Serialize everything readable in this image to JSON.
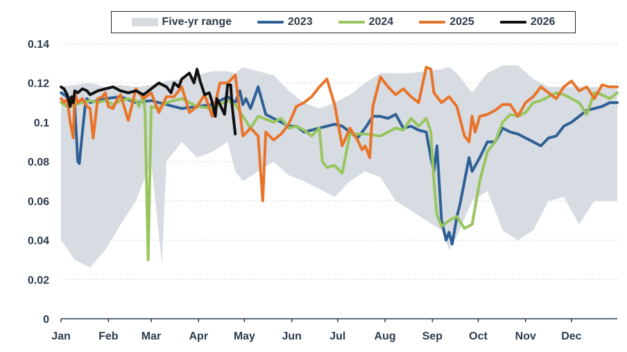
{
  "chart_data": {
    "type": "line",
    "title": "",
    "xlabel": "",
    "ylabel": "",
    "ylim": [
      0,
      0.14
    ],
    "y_ticks": [
      "0",
      "0.02",
      "0.04",
      "0.06",
      "0.08",
      "0.1",
      "0.12",
      "0.14"
    ],
    "y_tick_values": [
      0,
      0.02,
      0.04,
      0.06,
      0.08,
      0.1,
      0.12,
      0.14
    ],
    "x_tick_labels": [
      "Jan",
      "Feb",
      "Mar",
      "Apr",
      "May",
      "Jun",
      "Jul",
      "Aug",
      "Sep",
      "Oct",
      "Nov",
      "Dec"
    ],
    "x_unit": "day of year",
    "xlim": [
      1,
      365
    ],
    "legend": [
      "Five-yr range",
      "2023",
      "2024",
      "2025",
      "2026"
    ],
    "band": {
      "name": "Five-yr range",
      "color": "#d7dbe2",
      "x": [
        1,
        10,
        20,
        30,
        40,
        50,
        60,
        67,
        70,
        80,
        90,
        100,
        110,
        115,
        120,
        130,
        140,
        150,
        160,
        170,
        180,
        190,
        200,
        210,
        220,
        230,
        240,
        250,
        255,
        260,
        270,
        280,
        290,
        300,
        310,
        320,
        330,
        340,
        350,
        365
      ],
      "low": [
        0.04,
        0.03,
        0.026,
        0.035,
        0.048,
        0.06,
        0.08,
        0.028,
        0.08,
        0.09,
        0.082,
        0.085,
        0.09,
        0.075,
        0.07,
        0.075,
        0.08,
        0.073,
        0.07,
        0.066,
        0.062,
        0.07,
        0.075,
        0.072,
        0.06,
        0.055,
        0.05,
        0.045,
        0.035,
        0.042,
        0.06,
        0.065,
        0.045,
        0.04,
        0.045,
        0.06,
        0.062,
        0.048,
        0.06,
        0.06
      ],
      "high": [
        0.118,
        0.119,
        0.12,
        0.118,
        0.119,
        0.118,
        0.119,
        0.12,
        0.121,
        0.122,
        0.124,
        0.126,
        0.126,
        0.125,
        0.128,
        0.126,
        0.124,
        0.116,
        0.11,
        0.107,
        0.11,
        0.114,
        0.12,
        0.125,
        0.125,
        0.125,
        0.126,
        0.127,
        0.128,
        0.125,
        0.115,
        0.125,
        0.129,
        0.129,
        0.122,
        0.118,
        0.118,
        0.118,
        0.118,
        0.117
      ]
    },
    "series": [
      {
        "name": "2023",
        "color": "#2e6096",
        "x": [
          1,
          5,
          8,
          10,
          12,
          13,
          15,
          17,
          18,
          20,
          25,
          30,
          40,
          50,
          60,
          65,
          70,
          80,
          90,
          100,
          110,
          115,
          118,
          120,
          122,
          125,
          130,
          135,
          140,
          145,
          150,
          155,
          160,
          165,
          170,
          175,
          180,
          185,
          190,
          195,
          200,
          205,
          210,
          215,
          220,
          225,
          230,
          235,
          240,
          243,
          245,
          247,
          250,
          253,
          255,
          257,
          260,
          262,
          265,
          268,
          270,
          275,
          280,
          285,
          290,
          295,
          300,
          305,
          310,
          315,
          320,
          325,
          330,
          335,
          340,
          345,
          350,
          355,
          360,
          365
        ],
        "y": [
          0.115,
          0.113,
          0.112,
          0.108,
          0.08,
          0.079,
          0.095,
          0.11,
          0.112,
          0.11,
          0.111,
          0.112,
          0.113,
          0.11,
          0.111,
          0.11,
          0.109,
          0.107,
          0.108,
          0.109,
          0.113,
          0.11,
          0.116,
          0.109,
          0.112,
          0.107,
          0.118,
          0.104,
          0.102,
          0.1,
          0.098,
          0.098,
          0.095,
          0.096,
          0.097,
          0.098,
          0.099,
          0.098,
          0.095,
          0.092,
          0.097,
          0.103,
          0.103,
          0.102,
          0.104,
          0.097,
          0.098,
          0.096,
          0.095,
          0.082,
          0.075,
          0.088,
          0.05,
          0.04,
          0.044,
          0.038,
          0.052,
          0.058,
          0.07,
          0.082,
          0.075,
          0.082,
          0.09,
          0.09,
          0.097,
          0.095,
          0.094,
          0.092,
          0.09,
          0.088,
          0.092,
          0.093,
          0.098,
          0.1,
          0.103,
          0.106,
          0.107,
          0.108,
          0.11,
          0.11
        ]
      },
      {
        "name": "2024",
        "color": "#98c55e",
        "x": [
          1,
          5,
          10,
          15,
          20,
          25,
          30,
          35,
          40,
          45,
          50,
          52,
          54,
          55,
          56,
          58,
          60,
          65,
          70,
          75,
          80,
          90,
          100,
          110,
          115,
          120,
          125,
          130,
          140,
          145,
          150,
          155,
          160,
          165,
          170,
          172,
          175,
          180,
          185,
          190,
          200,
          210,
          215,
          220,
          225,
          230,
          235,
          240,
          243,
          245,
          247,
          250,
          255,
          260,
          265,
          270,
          275,
          280,
          285,
          290,
          295,
          300,
          305,
          310,
          315,
          320,
          325,
          330,
          335,
          340,
          345,
          350,
          355,
          360,
          365
        ],
        "y": [
          0.11,
          0.108,
          0.109,
          0.11,
          0.111,
          0.11,
          0.111,
          0.109,
          0.111,
          0.112,
          0.111,
          0.108,
          0.112,
          0.113,
          0.105,
          0.03,
          0.108,
          0.107,
          0.11,
          0.111,
          0.112,
          0.108,
          0.107,
          0.111,
          0.109,
          0.103,
          0.097,
          0.103,
          0.1,
          0.102,
          0.097,
          0.098,
          0.096,
          0.093,
          0.097,
          0.08,
          0.077,
          0.078,
          0.074,
          0.094,
          0.094,
          0.093,
          0.095,
          0.097,
          0.096,
          0.102,
          0.098,
          0.102,
          0.095,
          0.07,
          0.053,
          0.047,
          0.05,
          0.052,
          0.046,
          0.048,
          0.07,
          0.085,
          0.09,
          0.1,
          0.104,
          0.103,
          0.105,
          0.11,
          0.111,
          0.113,
          0.115,
          0.114,
          0.112,
          0.11,
          0.104,
          0.115,
          0.114,
          0.112,
          0.115
        ]
      },
      {
        "name": "2025",
        "color": "#e8742a",
        "x": [
          1,
          3,
          5,
          7,
          9,
          10,
          12,
          15,
          18,
          20,
          22,
          25,
          28,
          30,
          32,
          35,
          38,
          40,
          45,
          50,
          55,
          60,
          65,
          70,
          75,
          80,
          85,
          90,
          95,
          100,
          105,
          110,
          115,
          120,
          125,
          130,
          133,
          135,
          140,
          145,
          150,
          155,
          160,
          165,
          170,
          175,
          180,
          185,
          190,
          195,
          198,
          200,
          203,
          205,
          210,
          215,
          220,
          225,
          230,
          235,
          240,
          243,
          245,
          250,
          255,
          260,
          265,
          268,
          270,
          272,
          275,
          280,
          285,
          290,
          295,
          300,
          305,
          310,
          315,
          320,
          325,
          330,
          335,
          340,
          345,
          350,
          355,
          360,
          365
        ],
        "y": [
          0.112,
          0.11,
          0.112,
          0.1,
          0.092,
          0.115,
          0.11,
          0.112,
          0.108,
          0.107,
          0.092,
          0.112,
          0.113,
          0.115,
          0.108,
          0.107,
          0.112,
          0.114,
          0.101,
          0.117,
          0.112,
          0.115,
          0.105,
          0.113,
          0.113,
          0.118,
          0.105,
          0.108,
          0.114,
          0.103,
          0.12,
          0.12,
          0.124,
          0.093,
          0.097,
          0.093,
          0.06,
          0.095,
          0.091,
          0.094,
          0.099,
          0.108,
          0.11,
          0.113,
          0.118,
          0.122,
          0.109,
          0.088,
          0.097,
          0.091,
          0.086,
          0.088,
          0.082,
          0.108,
          0.123,
          0.118,
          0.114,
          0.117,
          0.113,
          0.11,
          0.128,
          0.127,
          0.115,
          0.11,
          0.113,
          0.108,
          0.093,
          0.09,
          0.103,
          0.095,
          0.103,
          0.104,
          0.106,
          0.109,
          0.109,
          0.103,
          0.11,
          0.113,
          0.118,
          0.115,
          0.112,
          0.118,
          0.121,
          0.116,
          0.118,
          0.112,
          0.119,
          0.118,
          0.118
        ]
      },
      {
        "name": "2026",
        "color": "#111111",
        "x": [
          1,
          3,
          5,
          7,
          8,
          9,
          10,
          12,
          15,
          18,
          20,
          25,
          30,
          35,
          40,
          45,
          50,
          55,
          60,
          65,
          70,
          73,
          75,
          78,
          80,
          85,
          88,
          90,
          92,
          95,
          98,
          100,
          102,
          103,
          105,
          108,
          110,
          112,
          113,
          115
        ],
        "y": [
          0.118,
          0.117,
          0.114,
          0.108,
          0.113,
          0.11,
          0.116,
          0.115,
          0.117,
          0.116,
          0.114,
          0.116,
          0.117,
          0.118,
          0.116,
          0.115,
          0.116,
          0.114,
          0.117,
          0.12,
          0.118,
          0.115,
          0.12,
          0.118,
          0.122,
          0.125,
          0.12,
          0.127,
          0.121,
          0.114,
          0.115,
          0.11,
          0.103,
          0.112,
          0.109,
          0.104,
          0.119,
          0.119,
          0.108,
          0.094
        ]
      }
    ]
  }
}
